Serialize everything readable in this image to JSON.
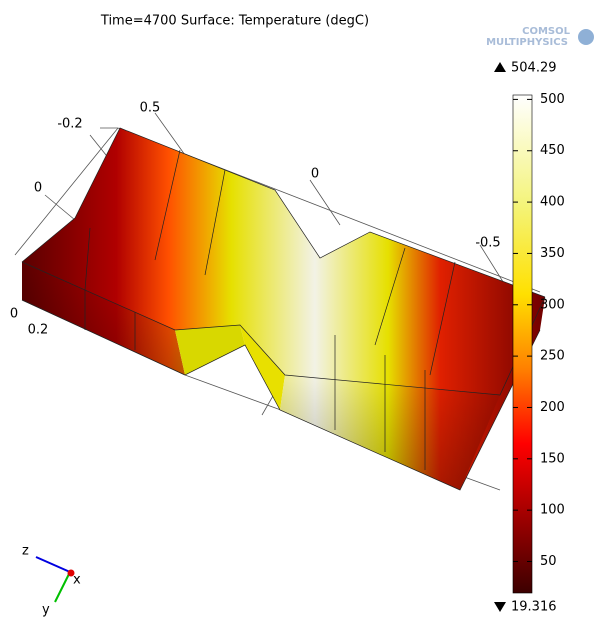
{
  "title": "Time=4700  Surface: Temperature (degC)",
  "logo": {
    "line1": "COMSOL",
    "line2": "MULTIPHYSICS"
  },
  "colorbar": {
    "max": 504.29,
    "min": 19.316,
    "ticks": [
      500,
      450,
      400,
      350,
      300,
      250,
      200,
      150,
      100,
      50
    ]
  },
  "axis_labels": [
    "-0.2",
    "0.5",
    "0",
    "0",
    "-0.5",
    "0",
    "0.2"
  ],
  "triad": {
    "z": "z",
    "x": "x",
    "y": "y"
  }
}
